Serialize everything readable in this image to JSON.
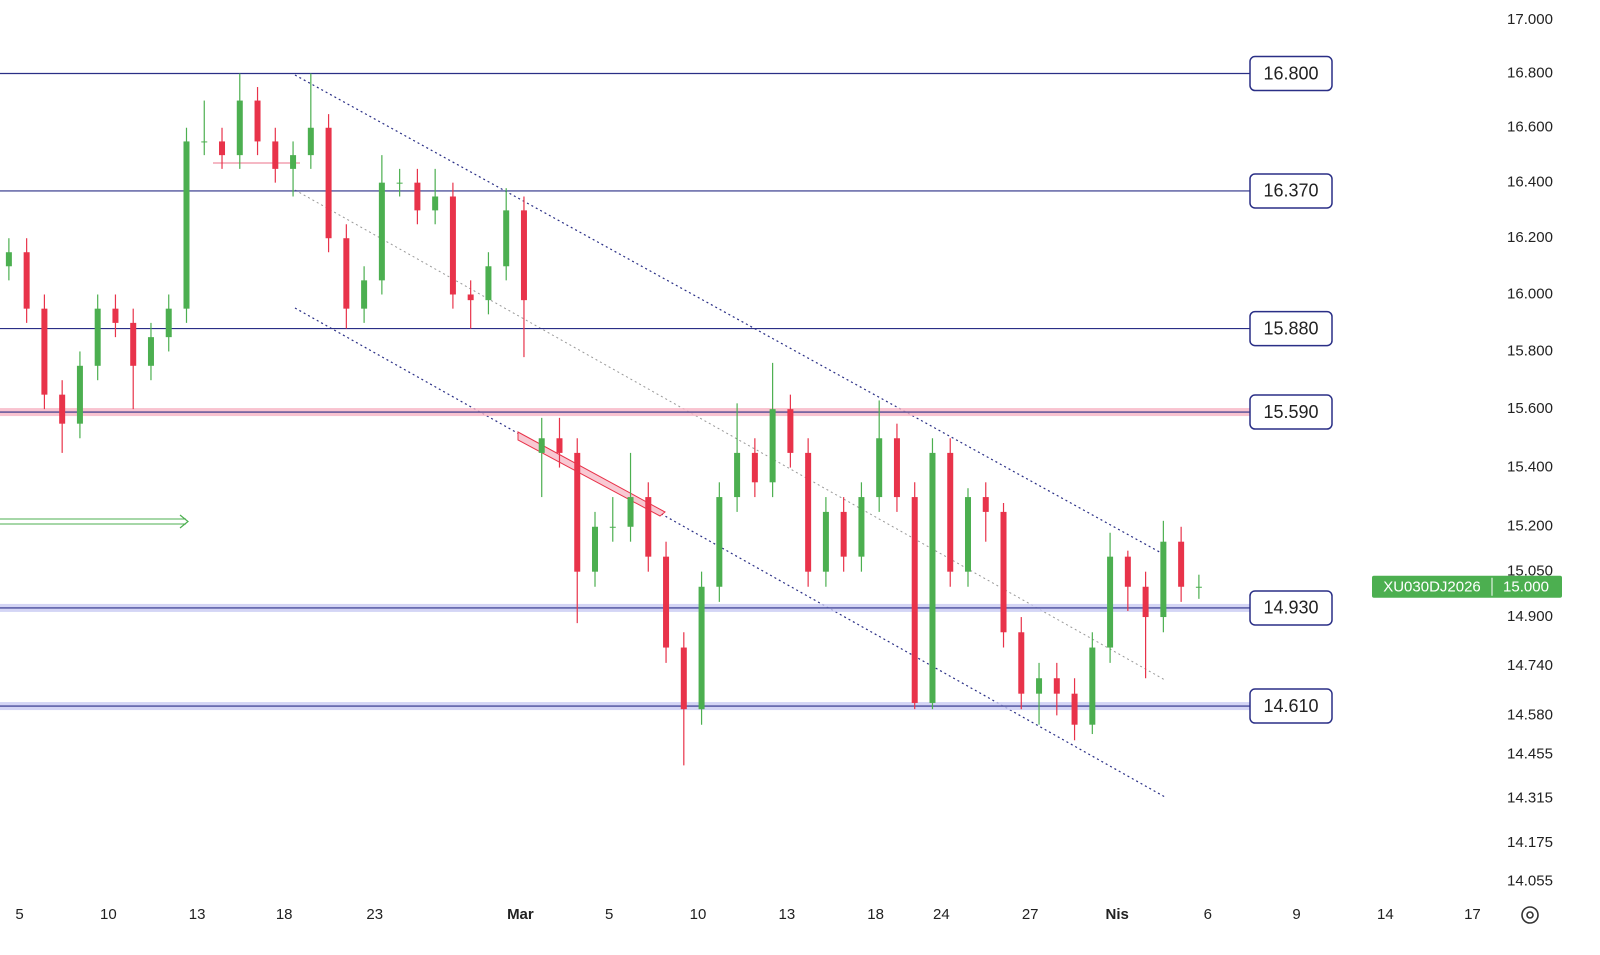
{
  "chart_data": {
    "type": "candlestick",
    "symbol": "XU030DJ2026",
    "last_price": {
      "value": 15,
      "label": "15.000"
    },
    "up_color": "#4caf50",
    "down_color": "#e8334a",
    "log_scale": true,
    "ylim": [
      14.013,
      17.075
    ],
    "yticks": [
      {
        "value": 17,
        "label": "17.000"
      },
      {
        "value": 16.8,
        "label": "16.800"
      },
      {
        "value": 16.6,
        "label": "16.600"
      },
      {
        "value": 16.4,
        "label": "16.400"
      },
      {
        "value": 16.2,
        "label": "16.200"
      },
      {
        "value": 16,
        "label": "16.000"
      },
      {
        "value": 15.8,
        "label": "15.800"
      },
      {
        "value": 15.6,
        "label": "15.600"
      },
      {
        "value": 15.4,
        "label": "15.400"
      },
      {
        "value": 15.2,
        "label": "15.200"
      },
      {
        "value": 15.05,
        "label": "15.050"
      },
      {
        "value": 14.9,
        "label": "14.900"
      },
      {
        "value": 14.74,
        "label": "14.740"
      },
      {
        "value": 14.58,
        "label": "14.580"
      },
      {
        "value": 14.455,
        "label": "14.455"
      },
      {
        "value": 14.315,
        "label": "14.315"
      },
      {
        "value": 14.175,
        "label": "14.175"
      },
      {
        "value": 14.055,
        "label": "14.055"
      }
    ],
    "xlim": [
      0,
      88
    ],
    "xticks": [
      {
        "value": 1.1,
        "label": "5"
      },
      {
        "value": 6.1,
        "label": "10"
      },
      {
        "value": 11.1,
        "label": "13"
      },
      {
        "value": 16.0,
        "label": "18"
      },
      {
        "value": 21.1,
        "label": "23"
      },
      {
        "value": 29.3,
        "label": "Mar"
      },
      {
        "value": 34.3,
        "label": "5"
      },
      {
        "value": 39.3,
        "label": "10"
      },
      {
        "value": 44.3,
        "label": "13"
      },
      {
        "value": 49.3,
        "label": "18"
      },
      {
        "value": 53.0,
        "label": "24"
      },
      {
        "value": 58.0,
        "label": "27"
      },
      {
        "value": 62.9,
        "label": "Nis"
      },
      {
        "value": 68.0,
        "label": "6"
      },
      {
        "value": 73.0,
        "label": "9"
      },
      {
        "value": 78.0,
        "label": "14"
      },
      {
        "value": 82.9,
        "label": "17"
      }
    ],
    "levels": [
      {
        "value": 16.8,
        "label": "16.800"
      },
      {
        "value": 16.37,
        "label": "16.370"
      },
      {
        "value": 15.88,
        "label": "15.880"
      },
      {
        "value": 15.59,
        "label": "15.590",
        "band": "#f8b4c4"
      },
      {
        "value": 14.93,
        "label": "14.930",
        "band": "#c9cbf2"
      },
      {
        "value": 14.61,
        "label": "14.610",
        "band": "#c9cbf2"
      }
    ],
    "level_color": "#2a2f86",
    "x": [
      0.5,
      1.5,
      2.5,
      3.5,
      4.5,
      5.5,
      6.5,
      7.5,
      8.5,
      9.5,
      10.5,
      11.5,
      12.5,
      13.5,
      14.5,
      15.5,
      16.5,
      17.5,
      18.5,
      19.5,
      20.5,
      21.5,
      22.5,
      23.5,
      24.5,
      25.5,
      26.5,
      27.5,
      28.5,
      29.5,
      30.5,
      31.5,
      32.5,
      33.5,
      34.5,
      35.5,
      36.5,
      37.5,
      38.5,
      39.5,
      40.5,
      41.5,
      42.5,
      43.5,
      44.5,
      45.5,
      46.5,
      47.5,
      48.5,
      49.5,
      50.5,
      51.5,
      52.5,
      53.5,
      54.5,
      55.5,
      56.5,
      57.5,
      58.5,
      59.5,
      60.5,
      61.5,
      62.5,
      63.5,
      64.5,
      65.5,
      66.5,
      67.5
    ],
    "open": [
      16.1,
      16.15,
      15.95,
      15.65,
      15.55,
      15.75,
      15.95,
      15.9,
      15.75,
      15.85,
      15.95,
      16.55,
      16.55,
      16.5,
      16.7,
      16.55,
      16.45,
      16.5,
      16.6,
      16.2,
      15.95,
      16.05,
      16.4,
      16.4,
      16.3,
      16.35,
      16.0,
      15.98,
      16.1,
      16.3,
      15.45,
      15.5,
      15.45,
      15.05,
      15.2,
      15.2,
      15.3,
      15.1,
      14.8,
      14.6,
      15.0,
      15.3,
      15.45,
      15.35,
      15.6,
      15.45,
      15.05,
      15.25,
      15.1,
      15.3,
      15.5,
      15.3,
      14.62,
      15.45,
      15.05,
      15.3,
      15.25,
      14.85,
      14.65,
      14.7,
      14.65,
      14.55,
      14.8,
      15.1,
      15.0,
      14.9,
      15.15,
      15.0
    ],
    "high": [
      16.2,
      16.2,
      16.0,
      15.7,
      15.8,
      16.0,
      16.0,
      15.95,
      15.9,
      16.0,
      16.6,
      16.7,
      16.6,
      16.8,
      16.75,
      16.6,
      16.55,
      16.8,
      16.65,
      16.25,
      16.1,
      16.5,
      16.45,
      16.45,
      16.45,
      16.4,
      16.05,
      16.15,
      16.38,
      16.35,
      15.57,
      15.57,
      15.5,
      15.25,
      15.3,
      15.45,
      15.35,
      15.15,
      14.85,
      15.05,
      15.35,
      15.62,
      15.5,
      15.76,
      15.65,
      15.5,
      15.3,
      15.3,
      15.35,
      15.63,
      15.55,
      15.35,
      15.5,
      15.5,
      15.33,
      15.35,
      15.28,
      14.9,
      14.75,
      14.75,
      14.7,
      14.85,
      15.18,
      15.12,
      15.05,
      15.22,
      15.2,
      15.04
    ],
    "low": [
      16.05,
      15.9,
      15.6,
      15.45,
      15.5,
      15.7,
      15.85,
      15.6,
      15.7,
      15.8,
      15.9,
      16.5,
      16.45,
      16.45,
      16.5,
      16.4,
      16.35,
      16.45,
      16.15,
      15.88,
      15.9,
      16.0,
      16.35,
      16.25,
      16.25,
      15.95,
      15.88,
      15.93,
      16.05,
      15.78,
      15.3,
      15.4,
      14.88,
      15.0,
      15.15,
      15.15,
      15.05,
      14.75,
      14.42,
      14.55,
      14.95,
      15.25,
      15.3,
      15.3,
      15.4,
      15.0,
      15.0,
      15.05,
      15.05,
      15.25,
      15.25,
      14.6,
      14.6,
      15.0,
      15.0,
      15.15,
      14.8,
      14.6,
      14.55,
      14.58,
      14.5,
      14.52,
      14.75,
      14.92,
      14.7,
      14.85,
      14.95,
      14.96
    ],
    "close": [
      16.15,
      15.95,
      15.65,
      15.55,
      15.75,
      15.95,
      15.9,
      15.75,
      15.85,
      15.95,
      16.55,
      16.55,
      16.5,
      16.7,
      16.55,
      16.45,
      16.5,
      16.6,
      16.2,
      15.95,
      16.05,
      16.4,
      16.4,
      16.3,
      16.35,
      16.0,
      15.98,
      16.1,
      16.3,
      15.98,
      15.5,
      15.45,
      15.05,
      15.2,
      15.2,
      15.3,
      15.1,
      14.8,
      14.6,
      15.0,
      15.3,
      15.45,
      15.35,
      15.6,
      15.45,
      15.05,
      15.25,
      15.1,
      15.3,
      15.5,
      15.3,
      14.62,
      15.45,
      15.05,
      15.3,
      15.25,
      14.85,
      14.65,
      14.7,
      14.65,
      14.55,
      14.8,
      15.1,
      15.0,
      14.9,
      15.15,
      15.0,
      15.0
    ]
  }
}
